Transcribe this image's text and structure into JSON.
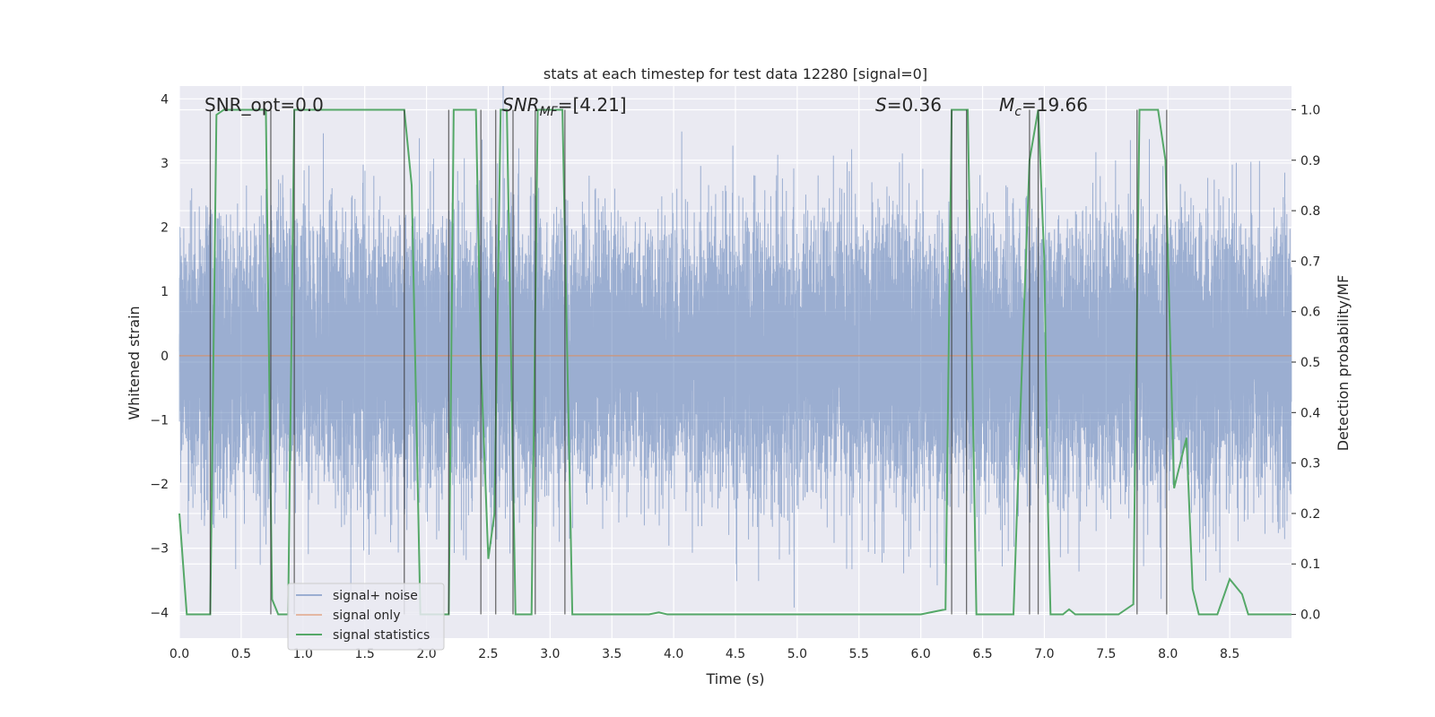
{
  "chart_data": {
    "type": "line",
    "title": "stats at each timestep for test data 12280 [signal=0]",
    "xlabel": "Time (s)",
    "ylabel": "Whitened strain",
    "y2label": "Detection probability/MF",
    "xlim": [
      0.0,
      9.0
    ],
    "ylim": [
      -4.4,
      4.2
    ],
    "y2lim": [
      -0.047,
      1.047
    ],
    "xticks": [
      "0.0",
      "0.5",
      "1.0",
      "1.5",
      "2.0",
      "2.5",
      "3.0",
      "3.5",
      "4.0",
      "4.5",
      "5.0",
      "5.5",
      "6.0",
      "6.5",
      "7.0",
      "7.5",
      "8.0",
      "8.5"
    ],
    "yticks": [
      "4",
      "3",
      "2",
      "1",
      "0",
      "−1",
      "−2",
      "−3",
      "−4"
    ],
    "y2ticks": [
      "1.0",
      "0.9",
      "0.8",
      "0.7",
      "0.6",
      "0.5",
      "0.4",
      "0.3",
      "0.2",
      "0.1",
      "0.0"
    ],
    "grid": true,
    "legend_position": "lower-left",
    "annotations": {
      "snr_opt": "SNR_opt=0.0",
      "snr_mf_base": "SNR",
      "snr_mf_sub": "MF",
      "snr_mf_value": "=[4.21]",
      "s_sym": "S",
      "s_value": "=0.36",
      "mc_sym": "M",
      "mc_sub": "c",
      "mc_value": "=19.66"
    },
    "colors": {
      "background": "#eaeaf2",
      "noise": "#4c72b0",
      "signal": "#dd8452",
      "stats": "#55a868",
      "vline": "#333333"
    },
    "series": [
      {
        "name": "signal+ noise",
        "sample_rate_hz": 2048,
        "duration_s": 9.0,
        "noise_std": 1.0
      },
      {
        "name": "signal only",
        "x": [
          0.0,
          9.0
        ],
        "y": [
          0.0,
          0.0
        ]
      },
      {
        "name": "signal statistics",
        "x": [
          0.0,
          0.06,
          0.12,
          0.25,
          0.3,
          0.36,
          0.42,
          0.5,
          0.55,
          0.6,
          0.7,
          0.75,
          0.8,
          0.88,
          0.93,
          0.98,
          1.05,
          1.2,
          1.4,
          1.6,
          1.75,
          1.82,
          1.88,
          1.95,
          2.0,
          2.05,
          2.1,
          2.18,
          2.22,
          2.3,
          2.4,
          2.44,
          2.5,
          2.55,
          2.6,
          2.65,
          2.72,
          2.78,
          2.85,
          2.9,
          2.95,
          3.0,
          3.05,
          3.1,
          3.18,
          3.25,
          3.4,
          3.6,
          3.8,
          3.88,
          3.95,
          4.05,
          4.5,
          5.0,
          5.5,
          6.0,
          6.2,
          6.25,
          6.3,
          6.38,
          6.45,
          6.5,
          6.6,
          6.75,
          6.82,
          6.88,
          6.95,
          7.0,
          7.03,
          7.05,
          7.1,
          7.15,
          7.2,
          7.25,
          7.32,
          7.4,
          7.5,
          7.6,
          7.72,
          7.77,
          7.82,
          7.88,
          7.92,
          7.98,
          8.05,
          8.15,
          8.2,
          8.25,
          8.3,
          8.4,
          8.5,
          8.6,
          8.65,
          8.7,
          8.75,
          8.8,
          8.88,
          8.95,
          9.0
        ],
        "y": [
          0.2,
          0.0,
          0.0,
          0.0,
          0.99,
          1.0,
          1.0,
          1.0,
          1.0,
          1.0,
          1.0,
          0.03,
          0.0,
          0.0,
          1.0,
          1.0,
          1.0,
          1.0,
          1.0,
          1.0,
          1.0,
          1.0,
          0.85,
          0.0,
          0.0,
          0.0,
          0.0,
          0.0,
          1.0,
          1.0,
          1.0,
          0.5,
          0.11,
          0.2,
          1.0,
          1.0,
          0.0,
          0.0,
          0.0,
          1.0,
          1.0,
          1.0,
          1.0,
          1.0,
          0.0,
          0.0,
          0.0,
          0.0,
          0.0,
          0.004,
          0.0,
          0.0,
          0.0,
          0.0,
          0.0,
          0.0,
          0.01,
          1.0,
          1.0,
          1.0,
          0.0,
          0.0,
          0.0,
          0.0,
          0.5,
          0.9,
          1.0,
          0.7,
          0.2,
          0.0,
          0.0,
          0.0,
          0.01,
          0.0,
          0.0,
          0.0,
          0.0,
          0.0,
          0.02,
          1.0,
          1.0,
          1.0,
          1.0,
          0.9,
          0.25,
          0.35,
          0.05,
          0.0,
          0.0,
          0.0,
          0.07,
          0.04,
          0.0,
          0.0,
          0.0,
          0.0,
          0.0,
          0.0,
          0.0
        ]
      }
    ],
    "vlines_x": [
      0.25,
      0.74,
      0.93,
      1.82,
      2.18,
      2.44,
      2.56,
      2.7,
      2.88,
      3.12,
      6.25,
      6.37,
      6.88,
      6.95,
      7.75,
      7.99
    ]
  }
}
